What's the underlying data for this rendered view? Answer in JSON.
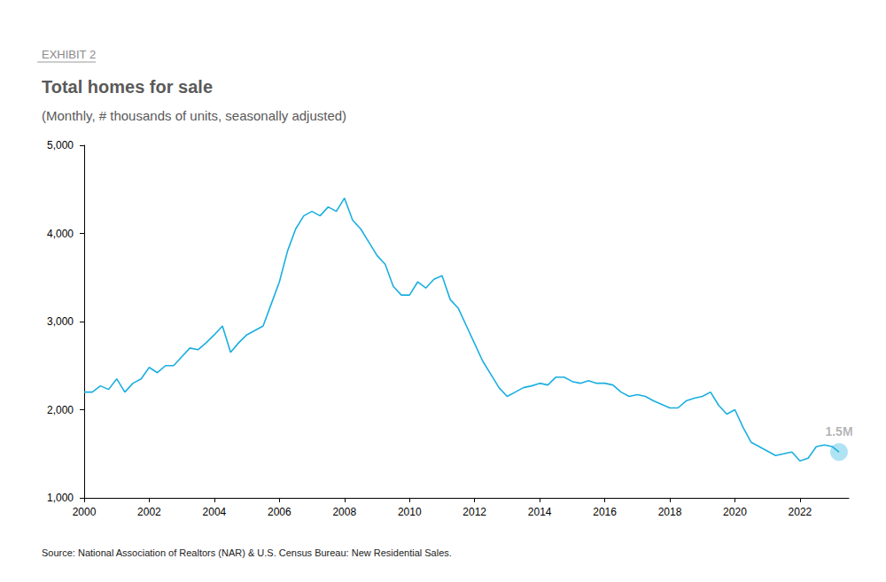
{
  "chart_data": {
    "type": "line",
    "exhibit": "EXHIBIT 2",
    "title": "Total homes for sale",
    "subtitle": "(Monthly, # thousands of units, seasonally adjusted)",
    "source": "Source: National Association of Realtors (NAR) & U.S. Census Bureau: New Residential Sales.",
    "annotation": "1.5M",
    "color": "#1aafe0",
    "grid": false,
    "xlim": [
      2000,
      2023.5
    ],
    "xticks": [
      2000,
      2002,
      2004,
      2006,
      2008,
      2010,
      2012,
      2014,
      2016,
      2018,
      2020,
      2022
    ],
    "ylim": [
      1000,
      5000
    ],
    "yticks": [
      {
        "value": 1000,
        "label": "1,000"
      },
      {
        "value": 2000,
        "label": "2,000"
      },
      {
        "value": 3000,
        "label": "3,000"
      },
      {
        "value": 4000,
        "label": "4,000"
      },
      {
        "value": 5000,
        "label": "5,000"
      }
    ],
    "x": [
      2000,
      2000.25,
      2000.5,
      2000.75,
      2001,
      2001.25,
      2001.5,
      2001.75,
      2002,
      2002.25,
      2002.5,
      2002.75,
      2003,
      2003.25,
      2003.5,
      2003.75,
      2004,
      2004.25,
      2004.5,
      2004.75,
      2005,
      2005.25,
      2005.5,
      2005.75,
      2006,
      2006.25,
      2006.5,
      2006.75,
      2007,
      2007.25,
      2007.5,
      2007.75,
      2008,
      2008.25,
      2008.5,
      2008.75,
      2009,
      2009.25,
      2009.5,
      2009.75,
      2010,
      2010.25,
      2010.5,
      2010.75,
      2011,
      2011.25,
      2011.5,
      2011.75,
      2012,
      2012.25,
      2012.5,
      2012.75,
      2013,
      2013.25,
      2013.5,
      2013.75,
      2014,
      2014.25,
      2014.5,
      2014.75,
      2015,
      2015.25,
      2015.5,
      2015.75,
      2016,
      2016.25,
      2016.5,
      2016.75,
      2017,
      2017.25,
      2017.5,
      2017.75,
      2018,
      2018.25,
      2018.5,
      2018.75,
      2019,
      2019.25,
      2019.5,
      2019.75,
      2020,
      2020.25,
      2020.5,
      2020.75,
      2021,
      2021.25,
      2021.5,
      2021.75,
      2022,
      2022.25,
      2022.5,
      2022.75,
      2023,
      2023.2
    ],
    "values": [
      2200,
      2200,
      2270,
      2230,
      2350,
      2200,
      2300,
      2350,
      2480,
      2420,
      2500,
      2500,
      2600,
      2700,
      2680,
      2760,
      2850,
      2950,
      2650,
      2760,
      2850,
      2900,
      2950,
      3200,
      3450,
      3800,
      4050,
      4200,
      4250,
      4200,
      4300,
      4250,
      4400,
      4150,
      4050,
      3900,
      3750,
      3650,
      3400,
      3300,
      3300,
      3450,
      3380,
      3480,
      3520,
      3250,
      3150,
      2950,
      2750,
      2550,
      2400,
      2250,
      2150,
      2200,
      2250,
      2270,
      2300,
      2280,
      2370,
      2370,
      2320,
      2300,
      2330,
      2300,
      2300,
      2280,
      2200,
      2150,
      2170,
      2150,
      2100,
      2060,
      2020,
      2020,
      2100,
      2130,
      2150,
      2200,
      2050,
      1950,
      2000,
      1800,
      1630,
      1580,
      1530,
      1480,
      1500,
      1520,
      1420,
      1450,
      1580,
      1600,
      1580,
      1520
    ]
  }
}
